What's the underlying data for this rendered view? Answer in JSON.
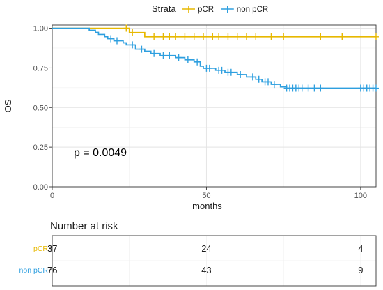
{
  "chart_data": {
    "type": "line",
    "subtype": "kaplan-meier",
    "ylabel": "OS",
    "xlabel": "months",
    "xlim": [
      0,
      105
    ],
    "ylim": [
      0,
      1.02
    ],
    "x_ticks": [
      0,
      50,
      100
    ],
    "y_ticks": [
      0.0,
      0.25,
      0.5,
      0.75,
      1.0
    ],
    "y_tick_labels": [
      "0.00",
      "0.25",
      "0.50",
      "0.75",
      "1.00"
    ],
    "grid": true,
    "legend": {
      "title": "Strata",
      "position": "top",
      "entries": [
        "pCR",
        "non pCR"
      ]
    },
    "annotation": "p = 0.0049",
    "series": [
      {
        "name": "pCR",
        "color": "#E7B800",
        "steps": [
          [
            0,
            1.0
          ],
          [
            25,
            0.973
          ],
          [
            30,
            0.946
          ],
          [
            105,
            0.946
          ]
        ],
        "censors": [
          [
            24,
            1.0
          ],
          [
            26,
            0.973
          ],
          [
            33,
            0.946
          ],
          [
            36,
            0.946
          ],
          [
            38,
            0.946
          ],
          [
            40,
            0.946
          ],
          [
            43,
            0.946
          ],
          [
            46,
            0.946
          ],
          [
            49,
            0.946
          ],
          [
            52,
            0.946
          ],
          [
            54,
            0.946
          ],
          [
            57,
            0.946
          ],
          [
            60,
            0.946
          ],
          [
            63,
            0.946
          ],
          [
            66,
            0.946
          ],
          [
            71,
            0.946
          ],
          [
            75,
            0.946
          ],
          [
            87,
            0.946
          ],
          [
            94,
            0.946
          ],
          [
            105,
            0.946
          ]
        ]
      },
      {
        "name": "non pCR",
        "color": "#2E9FDF",
        "steps": [
          [
            0,
            1.0
          ],
          [
            12,
            0.987
          ],
          [
            14,
            0.974
          ],
          [
            15,
            0.961
          ],
          [
            17,
            0.947
          ],
          [
            18,
            0.934
          ],
          [
            20,
            0.921
          ],
          [
            23,
            0.908
          ],
          [
            24,
            0.895
          ],
          [
            27,
            0.868
          ],
          [
            30,
            0.855
          ],
          [
            32,
            0.841
          ],
          [
            35,
            0.828
          ],
          [
            40,
            0.815
          ],
          [
            43,
            0.801
          ],
          [
            46,
            0.788
          ],
          [
            48,
            0.761
          ],
          [
            49,
            0.748
          ],
          [
            53,
            0.735
          ],
          [
            56,
            0.722
          ],
          [
            60,
            0.708
          ],
          [
            63,
            0.693
          ],
          [
            66,
            0.678
          ],
          [
            68,
            0.662
          ],
          [
            71,
            0.646
          ],
          [
            74,
            0.63
          ],
          [
            76,
            0.622
          ],
          [
            105,
            0.622
          ]
        ],
        "censors": [
          [
            19,
            0.934
          ],
          [
            21,
            0.921
          ],
          [
            26,
            0.895
          ],
          [
            29,
            0.868
          ],
          [
            33,
            0.841
          ],
          [
            36,
            0.828
          ],
          [
            38,
            0.828
          ],
          [
            41,
            0.815
          ],
          [
            44,
            0.801
          ],
          [
            47,
            0.788
          ],
          [
            50,
            0.748
          ],
          [
            51,
            0.748
          ],
          [
            54,
            0.735
          ],
          [
            55,
            0.735
          ],
          [
            57,
            0.722
          ],
          [
            58,
            0.722
          ],
          [
            61,
            0.708
          ],
          [
            65,
            0.693
          ],
          [
            67,
            0.678
          ],
          [
            69,
            0.662
          ],
          [
            70,
            0.662
          ],
          [
            72,
            0.646
          ],
          [
            76,
            0.622
          ],
          [
            77,
            0.622
          ],
          [
            78,
            0.622
          ],
          [
            79,
            0.622
          ],
          [
            80,
            0.622
          ],
          [
            81,
            0.622
          ],
          [
            83,
            0.622
          ],
          [
            85,
            0.622
          ],
          [
            87,
            0.622
          ],
          [
            100,
            0.622
          ],
          [
            101,
            0.622
          ],
          [
            102,
            0.622
          ],
          [
            103,
            0.622
          ],
          [
            104,
            0.622
          ],
          [
            105,
            0.622
          ]
        ]
      }
    ],
    "risk_table": {
      "title": "Number at risk",
      "times": [
        0,
        50,
        100
      ],
      "rows": [
        {
          "name": "pCR",
          "color": "#E7B800",
          "values": [
            37,
            24,
            4
          ]
        },
        {
          "name": "non pCR",
          "color": "#2E9FDF",
          "values": [
            76,
            43,
            9
          ]
        }
      ]
    }
  }
}
